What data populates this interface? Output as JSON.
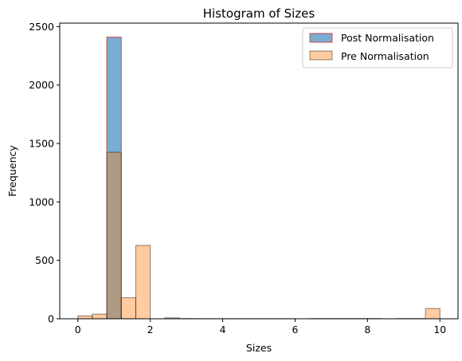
{
  "chart_data": {
    "type": "bar",
    "title": "Histogram of Sizes",
    "xlabel": "Sizes",
    "ylabel": "Frequency",
    "xlim": [
      -0.5,
      10.5
    ],
    "ylim": [
      0,
      2530
    ],
    "xticks": [
      0,
      2,
      4,
      6,
      8,
      10
    ],
    "yticks": [
      0,
      500,
      1000,
      1500,
      2000,
      2500
    ],
    "grid": false,
    "legend_position": "top-right",
    "series": [
      {
        "name": "Post Normalisation",
        "fill": "#1f77b4",
        "edge": "#d62728",
        "opacity": 0.6,
        "bins": [
          {
            "x0": 0.8,
            "x1": 1.2,
            "count": 2410
          }
        ]
      },
      {
        "name": "Pre Normalisation",
        "fill": "#ff7f0e",
        "edge": "#000000",
        "opacity": 0.4,
        "bins": [
          {
            "x0": 0.0,
            "x1": 0.4,
            "count": 25
          },
          {
            "x0": 0.4,
            "x1": 0.8,
            "count": 40
          },
          {
            "x0": 0.8,
            "x1": 1.2,
            "count": 1425
          },
          {
            "x0": 1.2,
            "x1": 1.6,
            "count": 180
          },
          {
            "x0": 1.6,
            "x1": 2.0,
            "count": 628
          },
          {
            "x0": 2.0,
            "x1": 2.4,
            "count": 0
          },
          {
            "x0": 2.4,
            "x1": 2.8,
            "count": 8
          },
          {
            "x0": 2.8,
            "x1": 3.2,
            "count": 2
          },
          {
            "x0": 3.2,
            "x1": 3.6,
            "count": 1
          },
          {
            "x0": 3.6,
            "x1": 4.0,
            "count": 1
          },
          {
            "x0": 4.0,
            "x1": 4.4,
            "count": 1
          },
          {
            "x0": 4.4,
            "x1": 4.8,
            "count": 1
          },
          {
            "x0": 4.8,
            "x1": 5.2,
            "count": 1
          },
          {
            "x0": 5.2,
            "x1": 5.6,
            "count": 1
          },
          {
            "x0": 5.6,
            "x1": 6.0,
            "count": 1
          },
          {
            "x0": 6.0,
            "x1": 6.4,
            "count": 0
          },
          {
            "x0": 6.4,
            "x1": 6.8,
            "count": 2
          },
          {
            "x0": 6.8,
            "x1": 7.2,
            "count": 2
          },
          {
            "x0": 7.2,
            "x1": 7.6,
            "count": 2
          },
          {
            "x0": 7.6,
            "x1": 8.0,
            "count": 2
          },
          {
            "x0": 8.0,
            "x1": 8.4,
            "count": 2
          },
          {
            "x0": 8.4,
            "x1": 8.8,
            "count": 0
          },
          {
            "x0": 8.8,
            "x1": 9.2,
            "count": 2
          },
          {
            "x0": 9.2,
            "x1": 9.6,
            "count": 2
          },
          {
            "x0": 9.6,
            "x1": 10.0,
            "count": 88
          }
        ]
      }
    ]
  }
}
